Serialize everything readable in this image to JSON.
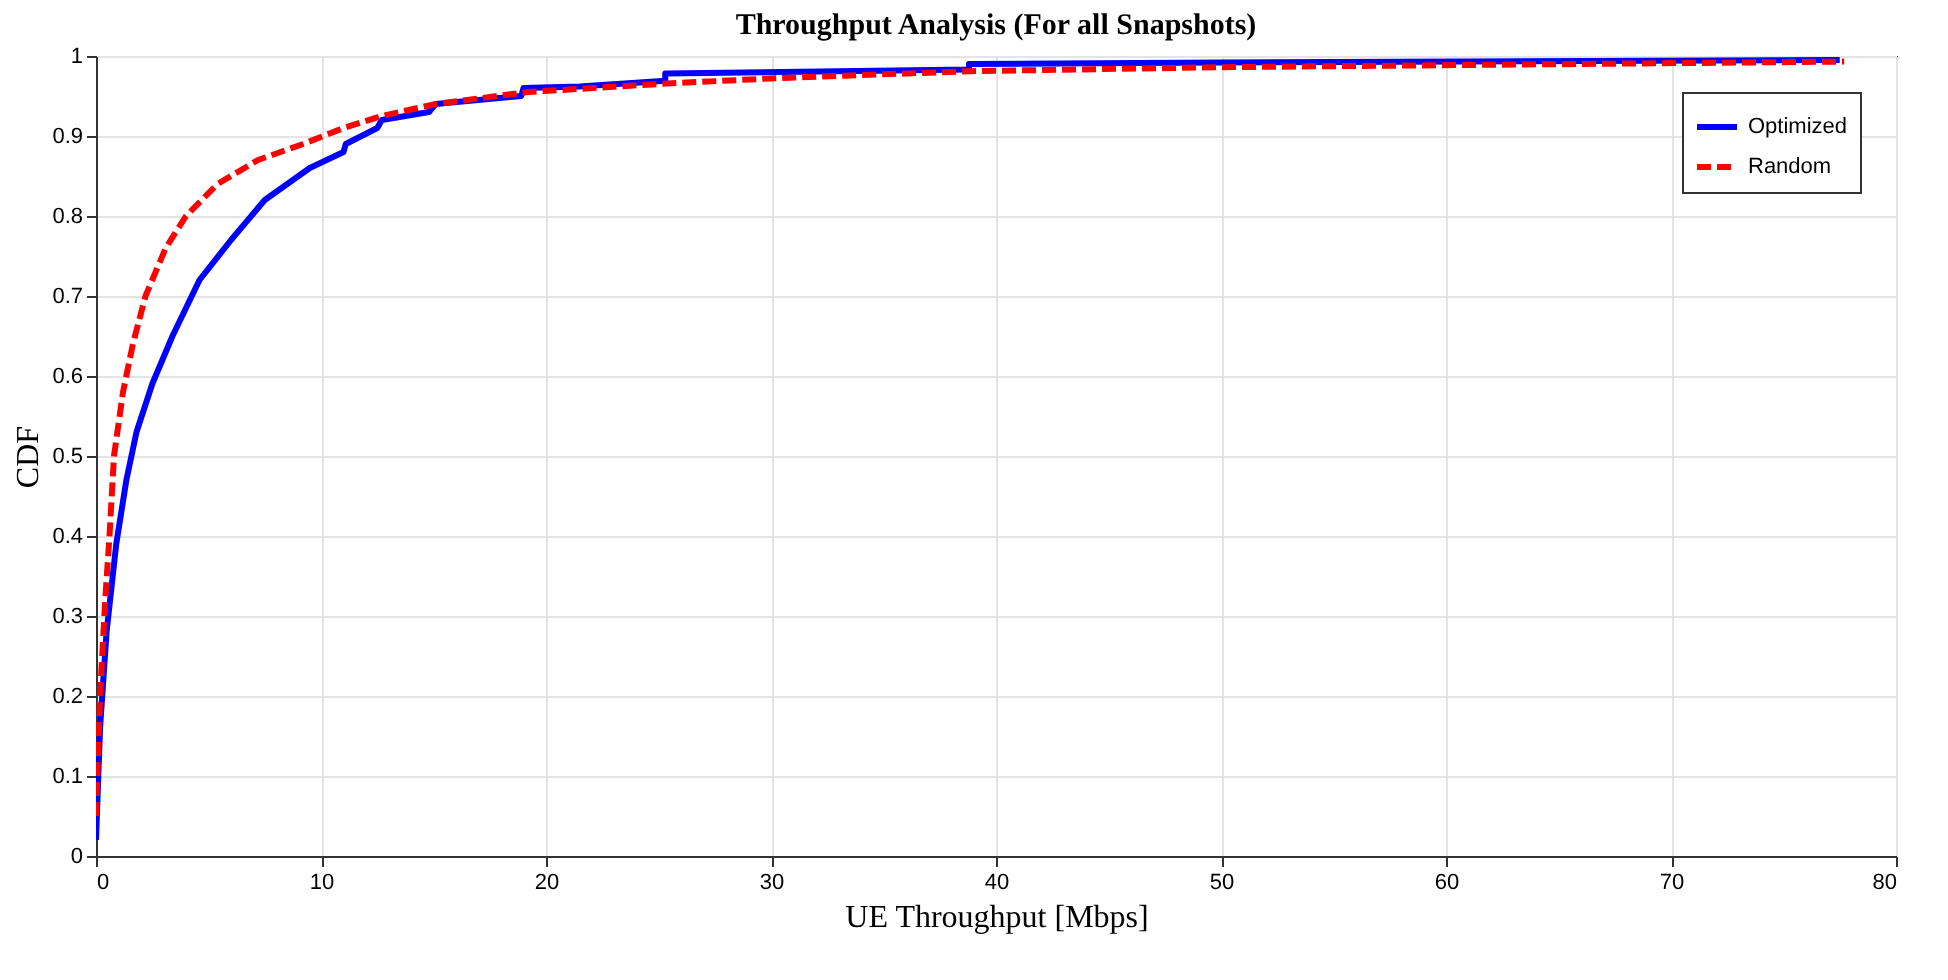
{
  "chart_data": {
    "type": "line",
    "title": "Throughput Analysis (For all Snapshots)",
    "xlabel": "UE Throughput [Mbps]",
    "ylabel": "CDF",
    "xlim": [
      0,
      80
    ],
    "xticks": [
      0,
      10,
      20,
      30,
      40,
      50,
      60,
      70,
      80
    ],
    "ylim": [
      0,
      1
    ],
    "yticks": [
      0,
      0.1,
      0.2,
      0.3,
      0.4,
      0.5,
      0.6,
      0.7,
      0.8,
      0.9,
      1
    ],
    "grid": true,
    "legend": "top right",
    "marker": "none",
    "series": [
      {
        "name": "Optimized",
        "color": "#0000ff",
        "line_style": "solid",
        "x": [
          0,
          0.18,
          0.47,
          0.9,
          1.35,
          1.8,
          2.5,
          3.4,
          4.6,
          6.0,
          7.5,
          9.5,
          11,
          11.1,
          12.5,
          12.7,
          14.8,
          15.1,
          18.9,
          19,
          21.5,
          25.3,
          25.3,
          38.8,
          38.8,
          50,
          77.5
        ],
        "values": [
          0.02,
          0.16,
          0.28,
          0.39,
          0.47,
          0.53,
          0.59,
          0.65,
          0.72,
          0.77,
          0.82,
          0.86,
          0.88,
          0.89,
          0.91,
          0.92,
          0.93,
          0.94,
          0.95,
          0.96,
          0.962,
          0.969,
          0.978,
          0.983,
          0.99,
          0.992,
          0.995
        ]
      },
      {
        "name": "Random",
        "color": "#ff0000",
        "line_style": "dashed",
        "x": [
          0,
          0.18,
          0.41,
          0.6,
          0.8,
          1.2,
          1.64,
          2.2,
          3.1,
          4.0,
          5.4,
          7.2,
          9.2,
          11,
          12.7,
          15.1,
          19.2,
          25,
          30,
          38.8,
          50,
          77.7
        ],
        "values": [
          0.05,
          0.2,
          0.32,
          0.4,
          0.5,
          0.58,
          0.64,
          0.7,
          0.76,
          0.8,
          0.84,
          0.87,
          0.89,
          0.91,
          0.925,
          0.94,
          0.955,
          0.965,
          0.972,
          0.981,
          0.986,
          0.993
        ]
      }
    ]
  }
}
